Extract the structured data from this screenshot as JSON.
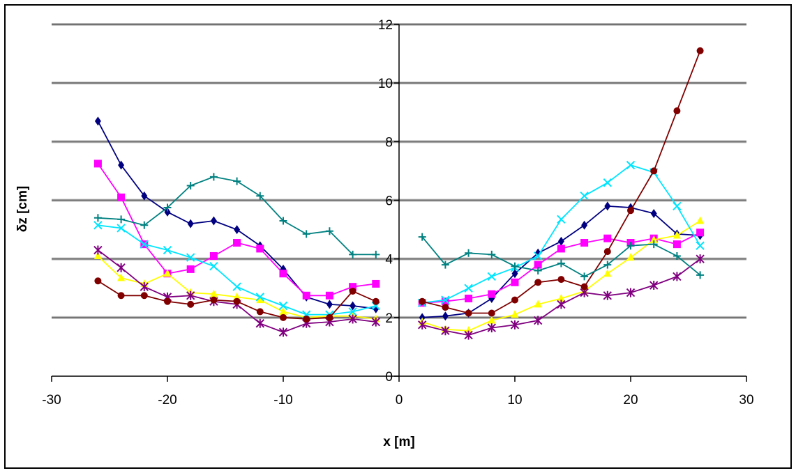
{
  "chart_data": {
    "type": "line",
    "title": "",
    "xlabel": "x [m]",
    "ylabel": "δz [cm]",
    "xlim": [
      -30,
      30
    ],
    "ylim": [
      0,
      12
    ],
    "x_ticks": [
      -30,
      -20,
      -10,
      0,
      10,
      20,
      30
    ],
    "y_ticks": [
      0,
      2,
      4,
      6,
      8,
      10,
      12
    ],
    "grid": "horizontal",
    "legend": "none",
    "series": [
      {
        "color": "#000080",
        "marker": "diamond",
        "segments": [
          [
            [
              -26,
              8.7
            ],
            [
              -24,
              7.2
            ],
            [
              -22,
              6.15
            ],
            [
              -20,
              5.6
            ],
            [
              -18,
              5.2
            ],
            [
              -16,
              5.3
            ],
            [
              -14,
              5.0
            ],
            [
              -12,
              4.45
            ],
            [
              -10,
              3.65
            ],
            [
              -8,
              2.7
            ],
            [
              -6,
              2.45
            ],
            [
              -4,
              2.4
            ],
            [
              -2,
              2.3
            ]
          ],
          [
            [
              2,
              2.0
            ],
            [
              4,
              2.05
            ],
            [
              6,
              2.15
            ],
            [
              8,
              2.65
            ],
            [
              10,
              3.5
            ],
            [
              12,
              4.2
            ],
            [
              14,
              4.6
            ],
            [
              16,
              5.15
            ],
            [
              18,
              5.8
            ],
            [
              20,
              5.75
            ],
            [
              22,
              5.55
            ],
            [
              24,
              4.85
            ],
            [
              26,
              4.8
            ]
          ]
        ]
      },
      {
        "color": "#ff00ff",
        "marker": "square",
        "segments": [
          [
            [
              -26,
              7.25
            ],
            [
              -24,
              6.1
            ],
            [
              -22,
              4.5
            ],
            [
              -20,
              3.5
            ],
            [
              -18,
              3.65
            ],
            [
              -16,
              4.1
            ],
            [
              -14,
              4.55
            ],
            [
              -12,
              4.35
            ],
            [
              -10,
              3.5
            ],
            [
              -8,
              2.75
            ],
            [
              -6,
              2.75
            ],
            [
              -4,
              3.05
            ],
            [
              -2,
              3.15
            ]
          ],
          [
            [
              2,
              2.5
            ],
            [
              4,
              2.55
            ],
            [
              6,
              2.65
            ],
            [
              8,
              2.8
            ],
            [
              10,
              3.2
            ],
            [
              12,
              3.8
            ],
            [
              14,
              4.35
            ],
            [
              16,
              4.55
            ],
            [
              18,
              4.7
            ],
            [
              20,
              4.55
            ],
            [
              22,
              4.7
            ],
            [
              24,
              4.5
            ],
            [
              26,
              4.9
            ]
          ]
        ]
      },
      {
        "color": "#ffff00",
        "marker": "triangle",
        "segments": [
          [
            [
              -26,
              4.1
            ],
            [
              -24,
              3.35
            ],
            [
              -22,
              3.15
            ],
            [
              -20,
              3.5
            ],
            [
              -18,
              2.85
            ],
            [
              -16,
              2.8
            ],
            [
              -14,
              2.7
            ],
            [
              -12,
              2.6
            ],
            [
              -10,
              2.2
            ],
            [
              -8,
              2.0
            ],
            [
              -6,
              2.05
            ],
            [
              -4,
              2.05
            ],
            [
              -2,
              1.95
            ]
          ],
          [
            [
              2,
              1.85
            ],
            [
              4,
              1.6
            ],
            [
              6,
              1.55
            ],
            [
              8,
              1.9
            ],
            [
              10,
              2.1
            ],
            [
              12,
              2.45
            ],
            [
              14,
              2.65
            ],
            [
              16,
              2.9
            ],
            [
              18,
              3.5
            ],
            [
              20,
              4.05
            ],
            [
              22,
              4.65
            ],
            [
              24,
              4.8
            ],
            [
              26,
              5.3
            ]
          ]
        ]
      },
      {
        "color": "#00e5ff",
        "marker": "x",
        "segments": [
          [
            [
              -26,
              5.15
            ],
            [
              -24,
              5.05
            ],
            [
              -22,
              4.5
            ],
            [
              -20,
              4.3
            ],
            [
              -18,
              4.05
            ],
            [
              -16,
              3.75
            ],
            [
              -14,
              3.05
            ],
            [
              -12,
              2.7
            ],
            [
              -10,
              2.4
            ],
            [
              -8,
              2.1
            ],
            [
              -6,
              2.1
            ],
            [
              -4,
              2.2
            ],
            [
              -2,
              2.4
            ]
          ],
          [
            [
              2,
              2.5
            ],
            [
              4,
              2.6
            ],
            [
              6,
              3.0
            ],
            [
              8,
              3.4
            ],
            [
              10,
              3.7
            ],
            [
              12,
              4.1
            ],
            [
              14,
              5.35
            ],
            [
              16,
              6.15
            ],
            [
              18,
              6.6
            ],
            [
              20,
              7.2
            ],
            [
              22,
              6.95
            ],
            [
              24,
              5.8
            ],
            [
              26,
              4.45
            ]
          ]
        ]
      },
      {
        "color": "#800080",
        "marker": "star",
        "segments": [
          [
            [
              -26,
              4.3
            ],
            [
              -24,
              3.7
            ],
            [
              -22,
              3.05
            ],
            [
              -20,
              2.7
            ],
            [
              -18,
              2.75
            ],
            [
              -16,
              2.55
            ],
            [
              -14,
              2.45
            ],
            [
              -12,
              1.8
            ],
            [
              -10,
              1.5
            ],
            [
              -8,
              1.8
            ],
            [
              -6,
              1.85
            ],
            [
              -4,
              1.95
            ],
            [
              -2,
              1.85
            ]
          ],
          [
            [
              2,
              1.75
            ],
            [
              4,
              1.55
            ],
            [
              6,
              1.4
            ],
            [
              8,
              1.65
            ],
            [
              10,
              1.75
            ],
            [
              12,
              1.9
            ],
            [
              14,
              2.45
            ],
            [
              16,
              2.85
            ],
            [
              18,
              2.75
            ],
            [
              20,
              2.85
            ],
            [
              22,
              3.1
            ],
            [
              24,
              3.4
            ],
            [
              26,
              4.0
            ]
          ]
        ]
      },
      {
        "color": "#800000",
        "marker": "circle",
        "segments": [
          [
            [
              -26,
              3.25
            ],
            [
              -24,
              2.75
            ],
            [
              -22,
              2.75
            ],
            [
              -20,
              2.55
            ],
            [
              -18,
              2.45
            ],
            [
              -16,
              2.6
            ],
            [
              -14,
              2.55
            ],
            [
              -12,
              2.2
            ],
            [
              -10,
              2.0
            ],
            [
              -8,
              1.95
            ],
            [
              -6,
              2.0
            ],
            [
              -4,
              2.9
            ],
            [
              -2,
              2.55
            ]
          ],
          [
            [
              2,
              2.55
            ],
            [
              4,
              2.35
            ],
            [
              6,
              2.15
            ],
            [
              8,
              2.15
            ],
            [
              10,
              2.6
            ],
            [
              12,
              3.2
            ],
            [
              14,
              3.3
            ],
            [
              16,
              3.05
            ],
            [
              18,
              4.25
            ],
            [
              20,
              5.65
            ],
            [
              22,
              7.0
            ],
            [
              24,
              9.05
            ],
            [
              26,
              11.1
            ]
          ]
        ]
      },
      {
        "color": "#008080",
        "marker": "plus",
        "segments": [
          [
            [
              -26,
              5.4
            ],
            [
              -24,
              5.35
            ],
            [
              -22,
              5.15
            ],
            [
              -20,
              5.75
            ],
            [
              -18,
              6.5
            ],
            [
              -16,
              6.8
            ],
            [
              -14,
              6.65
            ],
            [
              -12,
              6.15
            ],
            [
              -10,
              5.3
            ],
            [
              -8,
              4.85
            ],
            [
              -6,
              4.95
            ],
            [
              -4,
              4.15
            ],
            [
              -2,
              4.15
            ]
          ],
          [
            [
              2,
              4.75
            ],
            [
              4,
              3.8
            ],
            [
              6,
              4.2
            ],
            [
              8,
              4.15
            ],
            [
              10,
              3.75
            ],
            [
              12,
              3.6
            ],
            [
              14,
              3.85
            ],
            [
              16,
              3.4
            ],
            [
              18,
              3.8
            ],
            [
              20,
              4.45
            ],
            [
              22,
              4.5
            ],
            [
              24,
              4.1
            ],
            [
              26,
              3.45
            ]
          ]
        ]
      }
    ]
  }
}
